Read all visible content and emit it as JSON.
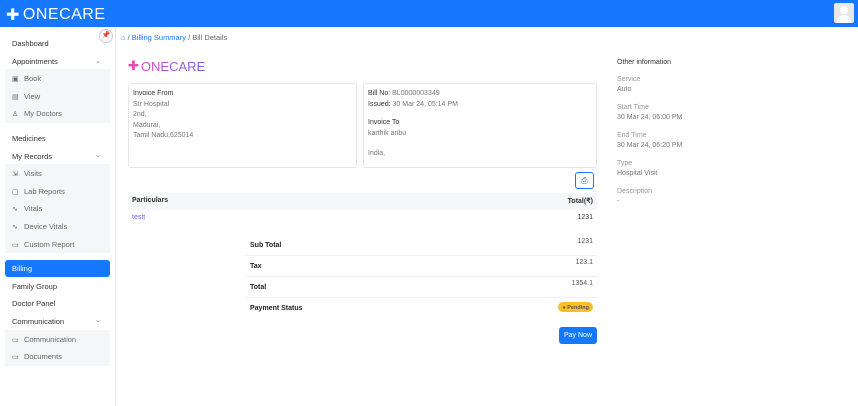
{
  "header": {
    "brand": "ONECARE"
  },
  "sidebar": {
    "items": [
      {
        "label": "Dashboard"
      },
      {
        "label": "Appointments"
      },
      {
        "label": "Book",
        "icon": "calendar-plus-icon"
      },
      {
        "label": "View",
        "icon": "calendar-icon"
      },
      {
        "label": "My Doctors",
        "icon": "doctor-icon"
      },
      {
        "label": "Medicines"
      },
      {
        "label": "My Records"
      },
      {
        "label": "Visits",
        "icon": "visit-icon"
      },
      {
        "label": "Lab Reports",
        "icon": "lab-report-icon"
      },
      {
        "label": "Vitals",
        "icon": "pulse-icon"
      },
      {
        "label": "Device Vitals",
        "icon": "pulse-icon"
      },
      {
        "label": "Custom Report",
        "icon": "report-icon"
      },
      {
        "label": "Billing",
        "active": true
      },
      {
        "label": "Family Group"
      },
      {
        "label": "Doctor Panel"
      },
      {
        "label": "Communication"
      },
      {
        "label": "Communication",
        "icon": "chat-icon"
      },
      {
        "label": "Documents",
        "icon": "document-icon"
      }
    ]
  },
  "breadcrumb": {
    "home": "home-icon",
    "items": [
      "Billing Summary",
      "Bill Details"
    ]
  },
  "invoice": {
    "brand": "ONECARE",
    "from": {
      "title": "Invoice From",
      "lines": [
        "Str Hospital",
        "2nd,",
        "Madurai,",
        "Tamil Nadu,625014"
      ]
    },
    "bill_no_label": "Bill No:",
    "bill_no": "BL0000003349",
    "issued_label": "Issued:",
    "issued": "30 Mar 24, 05:14 PM",
    "to": {
      "title": "Invoice To",
      "name": "karthik anbu",
      "country": "India,"
    },
    "table": {
      "headers": [
        "Particulars",
        "Total(₹)"
      ],
      "rows": [
        {
          "name": "testt",
          "total": "1231"
        }
      ]
    },
    "summary": [
      {
        "label": "Sub Total",
        "value": "1231"
      },
      {
        "label": "Tax",
        "value": "123.1"
      },
      {
        "label": "Total",
        "value": "1354.1"
      }
    ],
    "payment_status_label": "Payment Status",
    "payment_status": "Pending",
    "status_color": "#fbbf24",
    "pay_now": "Pay Now"
  },
  "other": {
    "title": "Other information",
    "fields": [
      {
        "label": "Service",
        "value": "Auto"
      },
      {
        "label": "Start Time",
        "value": "30 Mar 24, 06:00 PM"
      },
      {
        "label": "End Time",
        "value": "30 Mar 24, 06:20 PM"
      },
      {
        "label": "Type",
        "value": "Hospital Visit"
      },
      {
        "label": "Description",
        "value": "-"
      }
    ]
  },
  "colors": {
    "primary": "#1677ff"
  }
}
